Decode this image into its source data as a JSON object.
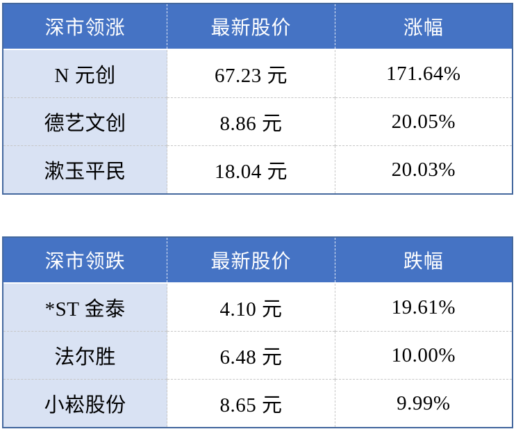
{
  "colors": {
    "header_bg": "#4573C4",
    "header_text": "#FFFFFF",
    "table_border": "#44689E",
    "first_column_bg": "#D9E2F3",
    "body_text": "#000000",
    "dashed_divider": "#C6C6C6"
  },
  "chart_data": [
    {
      "type": "table",
      "title": "深市领涨",
      "header": [
        "深市领涨",
        "最新股价",
        "涨幅"
      ],
      "rows": [
        [
          "N 元创",
          "67.23 元",
          "171.64%"
        ],
        [
          "德艺文创",
          "8.86 元",
          "20.05%"
        ],
        [
          "漱玉平民",
          "18.04 元",
          "20.03%"
        ]
      ]
    },
    {
      "type": "table",
      "title": "深市领跌",
      "header": [
        "深市领跌",
        "最新股价",
        "跌幅"
      ],
      "rows": [
        [
          "*ST 金泰",
          "4.10 元",
          "19.61%"
        ],
        [
          "法尔胜",
          "6.48 元",
          "10.00%"
        ],
        [
          "小崧股份",
          "8.65 元",
          "9.99%"
        ]
      ]
    }
  ]
}
